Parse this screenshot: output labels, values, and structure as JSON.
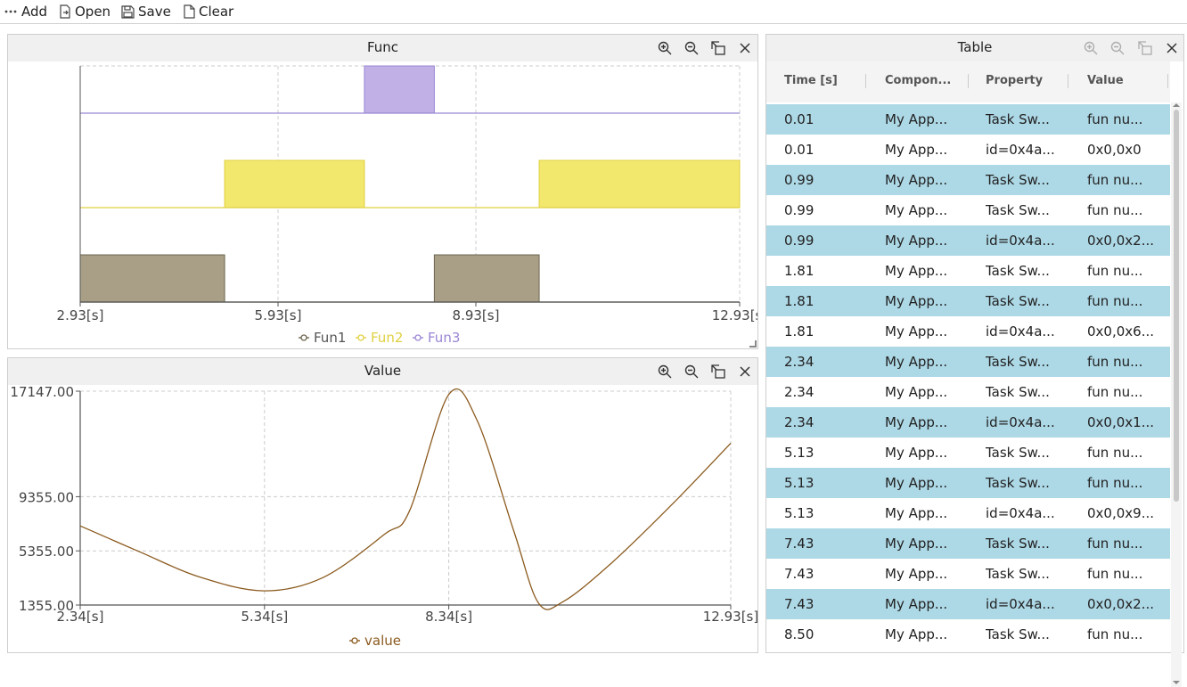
{
  "toolbar": {
    "add": "Add",
    "open": "Open",
    "save": "Save",
    "clear": "Clear"
  },
  "func_panel": {
    "title": "Func",
    "x_ticks": [
      "2.93[s]",
      "5.93[s]",
      "8.93[s]",
      "12.93[s]"
    ],
    "legend": [
      "Fun1",
      "Fun2",
      "Fun3"
    ]
  },
  "value_panel": {
    "title": "Value",
    "x_ticks": [
      "2.34[s]",
      "5.34[s]",
      "8.34[s]",
      "12.93[s]"
    ],
    "y_ticks": [
      "17147.00",
      "9355.00",
      "5355.00",
      "1355.00"
    ],
    "legend": [
      "value"
    ]
  },
  "table_panel": {
    "title": "Table",
    "columns": [
      "Time [s]",
      "Compon...",
      "Property",
      "Value"
    ],
    "rows": [
      [
        "0.01",
        "My App...",
        "Task Sw...",
        "fun nu..."
      ],
      [
        "0.01",
        "My App...",
        "id=0x4a...",
        "0x0,0x0"
      ],
      [
        "0.99",
        "My App...",
        "Task Sw...",
        "fun nu..."
      ],
      [
        "0.99",
        "My App...",
        "Task Sw...",
        "fun nu..."
      ],
      [
        "0.99",
        "My App...",
        "id=0x4a...",
        "0x0,0x2..."
      ],
      [
        "1.81",
        "My App...",
        "Task Sw...",
        "fun nu..."
      ],
      [
        "1.81",
        "My App...",
        "Task Sw...",
        "fun nu..."
      ],
      [
        "1.81",
        "My App...",
        "id=0x4a...",
        "0x0,0x6..."
      ],
      [
        "2.34",
        "My App...",
        "Task Sw...",
        "fun nu..."
      ],
      [
        "2.34",
        "My App...",
        "Task Sw...",
        "fun nu..."
      ],
      [
        "2.34",
        "My App...",
        "id=0x4a...",
        "0x0,0x1..."
      ],
      [
        "5.13",
        "My App...",
        "Task Sw...",
        "fun nu..."
      ],
      [
        "5.13",
        "My App...",
        "Task Sw...",
        "fun nu..."
      ],
      [
        "5.13",
        "My App...",
        "id=0x4a...",
        "0x0,0x9..."
      ],
      [
        "7.43",
        "My App...",
        "Task Sw...",
        "fun nu..."
      ],
      [
        "7.43",
        "My App...",
        "Task Sw...",
        "fun nu..."
      ],
      [
        "7.43",
        "My App...",
        "id=0x4a...",
        "0x0,0x2..."
      ],
      [
        "8.50",
        "My App...",
        "Task Sw...",
        "fun nu..."
      ]
    ]
  },
  "chart_data": [
    {
      "type": "area",
      "title": "Func",
      "xlabel": "",
      "ylabel": "",
      "xlim": [
        2.93,
        12.93
      ],
      "x_ticks": [
        2.93,
        5.93,
        8.93,
        12.93
      ],
      "grid": true,
      "legend": "bottom",
      "series": [
        {
          "name": "Fun1",
          "color": "#a89f86",
          "line_color": "#6e6650",
          "intervals": [
            [
              2.93,
              5.12
            ],
            [
              8.3,
              9.89
            ]
          ]
        },
        {
          "name": "Fun2",
          "color": "#f2e86e",
          "line_color": "#e0d040",
          "intervals": [
            [
              5.12,
              7.24
            ],
            [
              9.89,
              12.93
            ]
          ]
        },
        {
          "name": "Fun3",
          "color": "#c0b0e6",
          "line_color": "#9a86d4",
          "intervals": [
            [
              7.24,
              8.3
            ]
          ]
        }
      ]
    },
    {
      "type": "line",
      "title": "Value",
      "xlabel": "",
      "ylabel": "",
      "xlim": [
        2.34,
        12.93
      ],
      "ylim": [
        1355,
        17147
      ],
      "x_ticks": [
        2.34,
        5.34,
        8.34,
        12.93
      ],
      "y_ticks": [
        17147,
        9355,
        5355,
        1355
      ],
      "grid": true,
      "legend": "bottom",
      "series": [
        {
          "name": "value",
          "color": "#8b5a1e",
          "x": [
            2.34,
            3.3,
            4.3,
            5.34,
            6.3,
            7.3,
            7.7,
            8.34,
            8.8,
            9.4,
            9.8,
            10.2,
            11.0,
            12.0,
            12.93
          ],
          "y": [
            7200,
            5300,
            3400,
            2400,
            3400,
            6600,
            8300,
            16900,
            15000,
            6800,
            1500,
            1600,
            4500,
            8900,
            13300
          ]
        }
      ]
    }
  ]
}
